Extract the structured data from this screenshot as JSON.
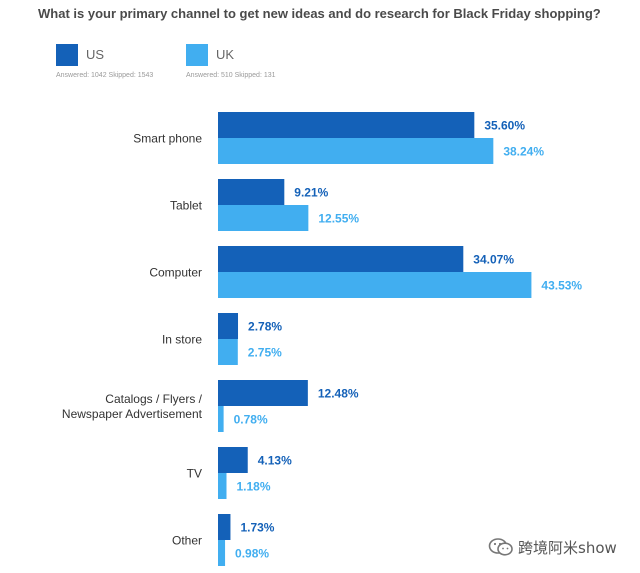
{
  "title": "What is your primary channel to get new ideas and do research for Black Friday shopping?",
  "legend": [
    {
      "name": "US",
      "color": "#1461b8",
      "stats": "Answered: 1042  Skipped: 1543"
    },
    {
      "name": "UK",
      "color": "#41aef0",
      "stats": "Answered: 510  Skipped: 131"
    }
  ],
  "watermark": {
    "text": "跨境阿米show",
    "icon": "wechat-icon"
  },
  "chart_data": {
    "type": "bar",
    "orientation": "horizontal",
    "categories": [
      "Smart phone",
      "Tablet",
      "Computer",
      "In store",
      "Catalogs / Flyers /\nNewspaper Advertisement",
      "TV",
      "Other"
    ],
    "series": [
      {
        "name": "US",
        "color": "#1461b8",
        "values": [
          35.6,
          9.21,
          34.07,
          2.78,
          12.48,
          4.13,
          1.73
        ],
        "labels": [
          "35.60%",
          "9.21%",
          "34.07%",
          "2.78%",
          "12.48%",
          "4.13%",
          "1.73%"
        ]
      },
      {
        "name": "UK",
        "color": "#41aef0",
        "values": [
          38.24,
          12.55,
          43.53,
          2.75,
          0.78,
          1.18,
          0.98
        ],
        "labels": [
          "38.24%",
          "12.55%",
          "43.53%",
          "2.75%",
          "0.78%",
          "1.18%",
          "0.98%"
        ]
      }
    ],
    "xlim": [
      0,
      50
    ],
    "grid": false,
    "legend_position": "top-left"
  }
}
